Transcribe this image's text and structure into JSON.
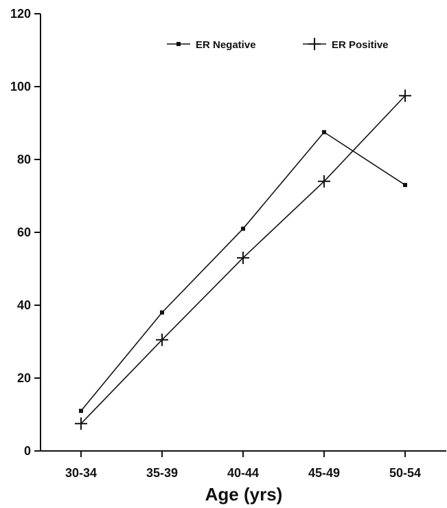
{
  "chart_data": {
    "type": "line",
    "categories": [
      "30-34",
      "35-39",
      "40-44",
      "45-49",
      "50-54"
    ],
    "xlabel": "Age (yrs)",
    "ylabel": "",
    "ylim": [
      0,
      120
    ],
    "yticks": [
      0,
      20,
      40,
      60,
      80,
      100,
      120
    ],
    "legend_position": "top-right",
    "series": [
      {
        "name": "ER Negative",
        "marker": "square",
        "values": [
          11,
          38,
          61,
          87.5,
          73
        ]
      },
      {
        "name": "ER Positive",
        "marker": "plus",
        "values": [
          7.5,
          30.5,
          53,
          74,
          97.5
        ]
      }
    ],
    "colors": {
      "line": "#111111",
      "background": "#ffffff"
    }
  }
}
